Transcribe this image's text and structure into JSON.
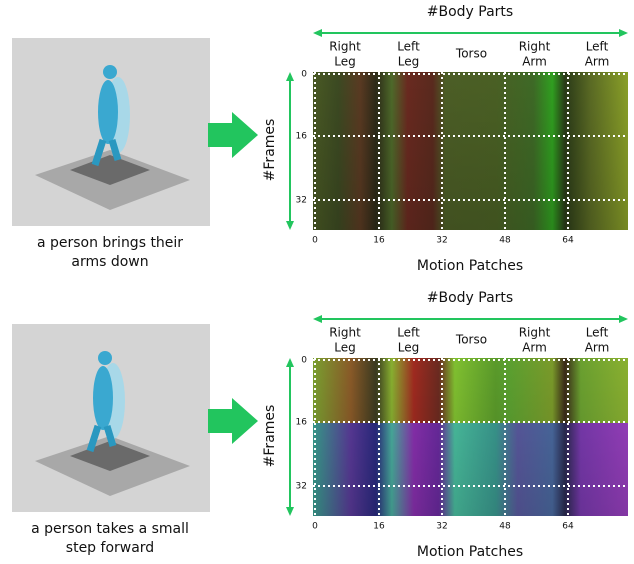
{
  "panels": [
    {
      "caption": [
        "a person brings their",
        "arms down"
      ],
      "top_label": "#Body Parts",
      "parts": [
        [
          "Right",
          "Leg"
        ],
        [
          "Left",
          "Leg"
        ],
        [
          "Torso"
        ],
        [
          "Right",
          "Arm"
        ],
        [
          "Left",
          "Arm"
        ]
      ],
      "side_label": "#Frames",
      "yticks": [
        0,
        16,
        32
      ],
      "xticks": [
        0,
        16,
        32,
        48,
        64
      ],
      "bottom_label": "Motion Patches"
    },
    {
      "caption": [
        "a person takes a small",
        "step forward"
      ],
      "top_label": "#Body Parts",
      "parts": [
        [
          "Right",
          "Leg"
        ],
        [
          "Left",
          "Leg"
        ],
        [
          "Torso"
        ],
        [
          "Right",
          "Arm"
        ],
        [
          "Left",
          "Arm"
        ]
      ],
      "side_label": "#Frames",
      "yticks": [
        0,
        16,
        32
      ],
      "xticks": [
        0,
        16,
        32,
        48,
        64
      ],
      "bottom_label": "Motion Patches"
    }
  ]
}
